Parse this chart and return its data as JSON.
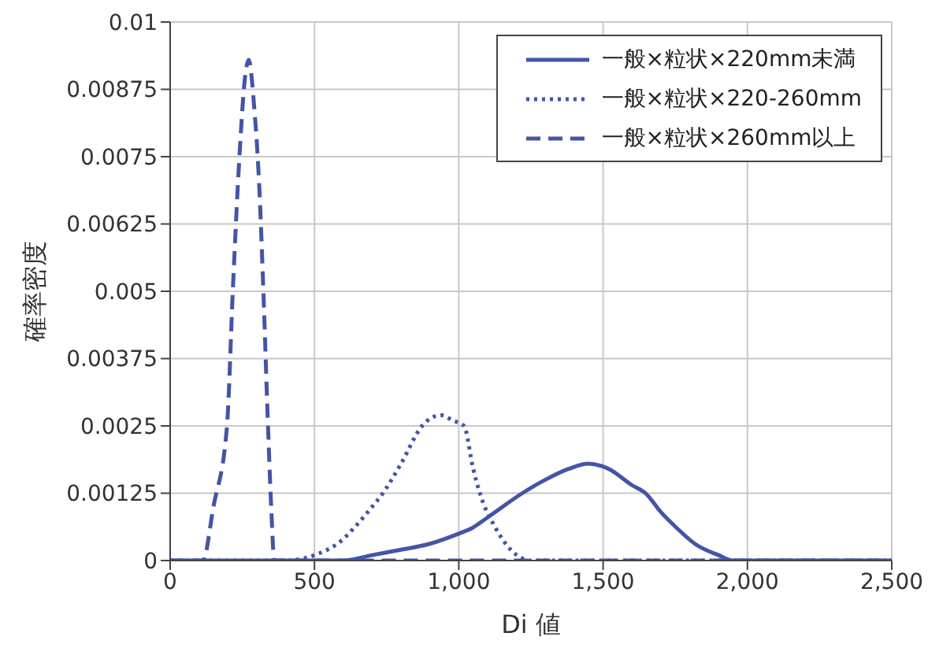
{
  "chart_data": {
    "type": "line",
    "xlabel": "Di 値",
    "ylabel": "確率密度",
    "xlim": [
      0,
      2500
    ],
    "ylim": [
      0,
      0.01
    ],
    "xticks": [
      0,
      500,
      {
        "value": 1000,
        "label": "1,000"
      },
      {
        "value": 1500,
        "label": "1,500"
      },
      {
        "value": 2000,
        "label": "2,000"
      },
      {
        "value": 2500,
        "label": "2,500"
      }
    ],
    "yticks": [
      0,
      0.00125,
      0.0025,
      0.00375,
      0.005,
      0.00625,
      0.0075,
      0.00875,
      0.01
    ],
    "grid": true,
    "legend": "top right",
    "marker": "none",
    "series": [
      {
        "name": "一般×粒状×220mm未満",
        "color": "#4455a6",
        "line_style": "solid",
        "x": [
          0,
          500,
          600,
          700,
          800,
          892,
          1000,
          1045,
          1100,
          1220,
          1300,
          1380,
          1448,
          1520,
          1600,
          1647,
          1700,
          1756,
          1821,
          1900,
          1950,
          2000,
          2500
        ],
        "values": [
          0,
          0,
          0,
          0.0001,
          0.0002,
          0.0003,
          0.0005,
          0.0006,
          0.0008,
          0.00125,
          0.0015,
          0.0017,
          0.0018,
          0.0017,
          0.0014,
          0.00125,
          0.0009,
          0.0006,
          0.0003,
          0.0001,
          0,
          0,
          0
        ]
      },
      {
        "name": "一般×粒状×220-260mm",
        "color": "#4455a6",
        "line_style": "dotted",
        "x": [
          0,
          400,
          500,
          600,
          636,
          700,
          737,
          800,
          873,
          937,
          980,
          1018,
          1050,
          1073,
          1128,
          1180,
          1250,
          2500
        ],
        "values": [
          0,
          0,
          0.0001,
          0.0004,
          0.0006,
          0.001,
          0.00125,
          0.0018,
          0.0025,
          0.0027,
          0.0026,
          0.0025,
          0.0017,
          0.00125,
          0.0006,
          0.0002,
          0,
          0
        ]
      },
      {
        "name": "一般×粒状×260mm以上",
        "color": "#4455a6",
        "line_style": "dashed",
        "x": [
          0,
          113,
          150,
          197,
          217,
          240,
          260,
          272,
          290,
          310,
          323,
          339,
          350,
          361,
          2500
        ],
        "values": [
          0,
          0,
          0.001,
          0.0025,
          0.005,
          0.0075,
          0.009,
          0.0093,
          0.0085,
          0.0068,
          0.005,
          0.0025,
          0.001,
          0,
          0
        ]
      }
    ]
  }
}
